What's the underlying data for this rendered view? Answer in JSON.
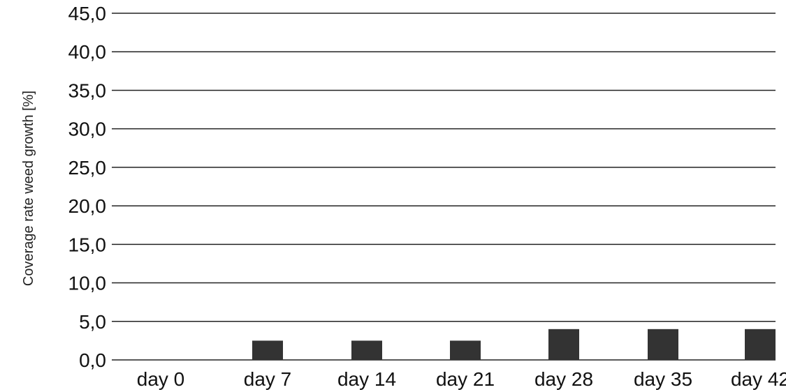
{
  "chart_data": {
    "type": "bar",
    "title": "",
    "xlabel": "",
    "ylabel": "Coverage rate weed growth [%]",
    "categories": [
      "day 0",
      "day 7",
      "day 14",
      "day 21",
      "day 28",
      "day 35",
      "day 42"
    ],
    "values": [
      0.0,
      2.5,
      2.5,
      2.5,
      4.0,
      4.0,
      4.0
    ],
    "ylim": [
      0,
      45
    ],
    "yticks": [
      "0,0",
      "5,0",
      "10,0",
      "15,0",
      "20,0",
      "25,0",
      "30,0",
      "35,0",
      "40,0",
      "45,0"
    ],
    "grid": true,
    "legend": "none",
    "bar_color": "#333333"
  }
}
